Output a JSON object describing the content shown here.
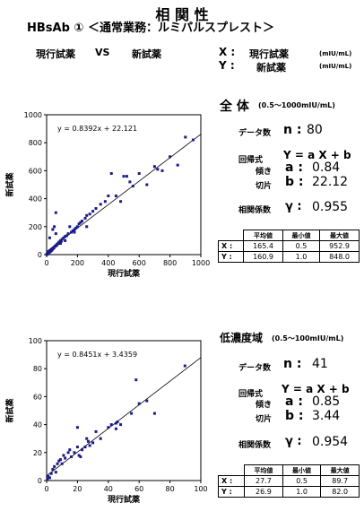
{
  "header": {
    "title": "相 関 性",
    "subtitle": "HBsAb ① ＜通常業務：ルミパルスプレスト＞",
    "compare_left": "現行試薬",
    "compare_vs": "VS",
    "compare_right": "新試薬",
    "x_axis_key": "X :",
    "x_axis_name": "現行試薬",
    "y_axis_key": "Y :",
    "y_axis_name": "新試薬",
    "unit": "(mIU/mL)"
  },
  "sections": [
    {
      "name": "全 体",
      "range": "(0.5～1000mIU/mL)",
      "n_label": "データ数",
      "n_symbol": "n :",
      "n_value": "80",
      "reg_label": "回帰式",
      "reg_formula": "Y = a X + b",
      "slope_label": "傾き",
      "slope_symbol": "a :",
      "slope_value": "0.84",
      "intercept_label": "切片",
      "intercept_symbol": "b :",
      "intercept_value": "22.12",
      "r_label": "相関係数",
      "r_symbol": "γ :",
      "r_value": "0.955",
      "stats": {
        "headers": [
          "平均値",
          "最小値",
          "最大値"
        ],
        "rows": [
          {
            "label": "X :",
            "mean": "165.4",
            "min": "0.5",
            "max": "952.9"
          },
          {
            "label": "Y :",
            "mean": "160.9",
            "min": "1.0",
            "max": "848.0"
          }
        ]
      }
    },
    {
      "name": "低濃度域",
      "range": "(0.5～100mIU/mL)",
      "n_label": "データ数",
      "n_symbol": "n :",
      "n_value": "41",
      "reg_label": "回帰式",
      "reg_formula": "Y = a X + b",
      "slope_label": "傾き",
      "slope_symbol": "a :",
      "slope_value": "0.85",
      "intercept_label": "切片",
      "intercept_symbol": "b :",
      "intercept_value": "3.44",
      "r_label": "相関係数",
      "r_symbol": "γ :",
      "r_value": "0.954",
      "stats": {
        "headers": [
          "平均値",
          "最小値",
          "最大値"
        ],
        "rows": [
          {
            "label": "X :",
            "mean": "27.7",
            "min": "0.5",
            "max": "89.7"
          },
          {
            "label": "Y :",
            "mean": "26.9",
            "min": "1.0",
            "max": "82.0"
          }
        ]
      }
    }
  ],
  "chart_data": [
    {
      "type": "scatter",
      "equation": "y = 0.8392x + 22.121",
      "xlabel": "現行試薬",
      "ylabel": "新試薬",
      "xlim": [
        0,
        1000
      ],
      "ylim": [
        0,
        1000
      ],
      "xticks": [
        0,
        200,
        400,
        600,
        800,
        1000
      ],
      "yticks": [
        0,
        200,
        400,
        600,
        800,
        1000
      ],
      "trendline": {
        "slope": 0.8392,
        "intercept": 22.121
      },
      "x": [
        1,
        2,
        3,
        4,
        5,
        6,
        8,
        10,
        12,
        15,
        18,
        20,
        22,
        25,
        28,
        30,
        33,
        35,
        38,
        40,
        42,
        45,
        48,
        50,
        55,
        58,
        60,
        63,
        65,
        70,
        75,
        80,
        85,
        90,
        95,
        100,
        110,
        120,
        130,
        140,
        150,
        160,
        170,
        180,
        190,
        200,
        210,
        220,
        230,
        250,
        260,
        280,
        300,
        320,
        350,
        380,
        400,
        420,
        450,
        480,
        500,
        520,
        540,
        560,
        600,
        650,
        700,
        720,
        750,
        800,
        850,
        900,
        950,
        20,
        40,
        60,
        90,
        120,
        180,
        260
      ],
      "y": [
        1,
        3,
        2,
        6,
        5,
        8,
        7,
        12,
        14,
        16,
        20,
        18,
        25,
        24,
        30,
        28,
        32,
        36,
        40,
        42,
        45,
        48,
        50,
        200,
        60,
        62,
        300,
        65,
        70,
        75,
        80,
        90,
        85,
        100,
        95,
        110,
        120,
        130,
        135,
        150,
        200,
        160,
        170,
        180,
        190,
        200,
        220,
        230,
        240,
        260,
        280,
        290,
        310,
        330,
        360,
        380,
        420,
        580,
        420,
        380,
        560,
        560,
        520,
        490,
        580,
        500,
        630,
        610,
        600,
        700,
        640,
        840,
        820,
        120,
        180,
        150,
        80,
        100,
        160,
        200
      ]
    },
    {
      "type": "scatter",
      "equation": "y = 0.8451x + 3.4359",
      "xlabel": "現行試薬",
      "ylabel": "新試薬",
      "xlim": [
        0,
        100
      ],
      "ylim": [
        0,
        100
      ],
      "xticks": [
        0,
        20,
        40,
        60,
        80,
        100
      ],
      "yticks": [
        0,
        20,
        40,
        60,
        80,
        100
      ],
      "trendline": {
        "slope": 0.8451,
        "intercept": 3.4359
      },
      "x": [
        0.5,
        1,
        2,
        3,
        4,
        5,
        6,
        7,
        8,
        9,
        10,
        11,
        12,
        14,
        15,
        16,
        18,
        20,
        20,
        21,
        22,
        23,
        25,
        26,
        27,
        28,
        30,
        32,
        35,
        40,
        42,
        45,
        45,
        46,
        48,
        55,
        58,
        60,
        65,
        70,
        89.7
      ],
      "y": [
        1,
        3,
        2,
        5,
        8,
        10,
        6,
        12,
        14,
        15,
        12,
        18,
        16,
        20,
        22,
        17,
        20,
        24,
        38,
        18,
        17,
        22,
        24,
        30,
        28,
        25,
        27,
        35,
        30,
        38,
        40,
        41,
        37,
        42,
        40,
        48,
        72,
        55,
        57,
        48,
        82
      ]
    }
  ]
}
